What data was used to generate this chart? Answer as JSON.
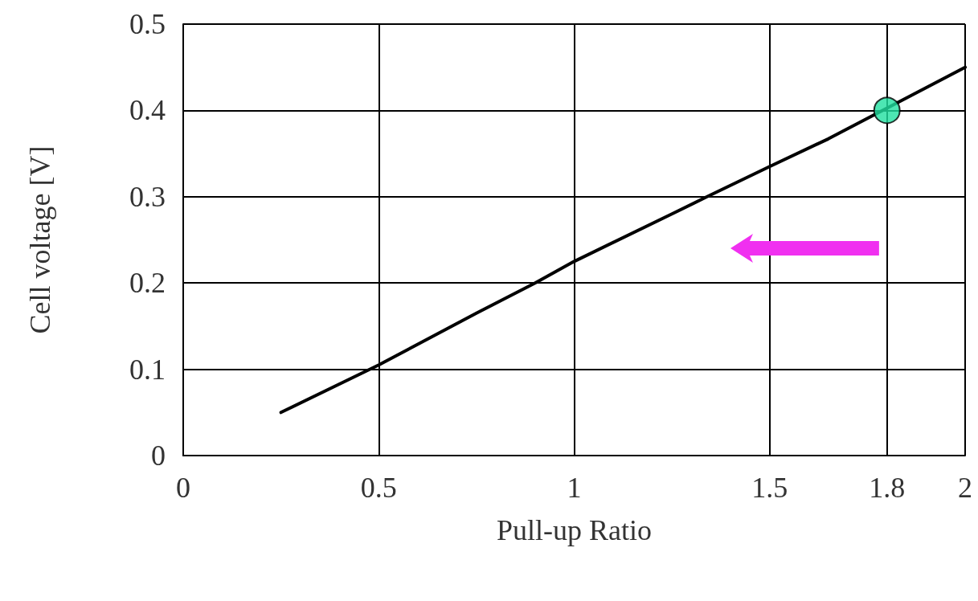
{
  "chart_data": {
    "type": "line",
    "xlabel": "Pull-up Ratio",
    "ylabel": "Cell voltage [V]",
    "xlim": [
      0,
      2
    ],
    "xticks": [
      0,
      0.5,
      1,
      1.5,
      1.8,
      2
    ],
    "ylim": [
      0,
      0.5
    ],
    "yticks": [
      0,
      0.1,
      0.2,
      0.3,
      0.4,
      0.5
    ],
    "grid": true,
    "series": [
      {
        "color": "#000000",
        "marker": "none",
        "line_style": "solid",
        "x": [
          0.25,
          0.5,
          0.75,
          0.9,
          1,
          1.25,
          1.34,
          1.5,
          1.65,
          2
        ],
        "values": [
          0.05,
          0.105,
          0.165,
          0.2,
          0.225,
          0.28,
          0.3,
          0.335,
          0.367,
          0.45
        ]
      },
      {
        "type": "scatter",
        "color": "#20e0a0",
        "marker": "circle",
        "x": [
          1.8
        ],
        "values": [
          0.4
        ]
      }
    ]
  }
}
